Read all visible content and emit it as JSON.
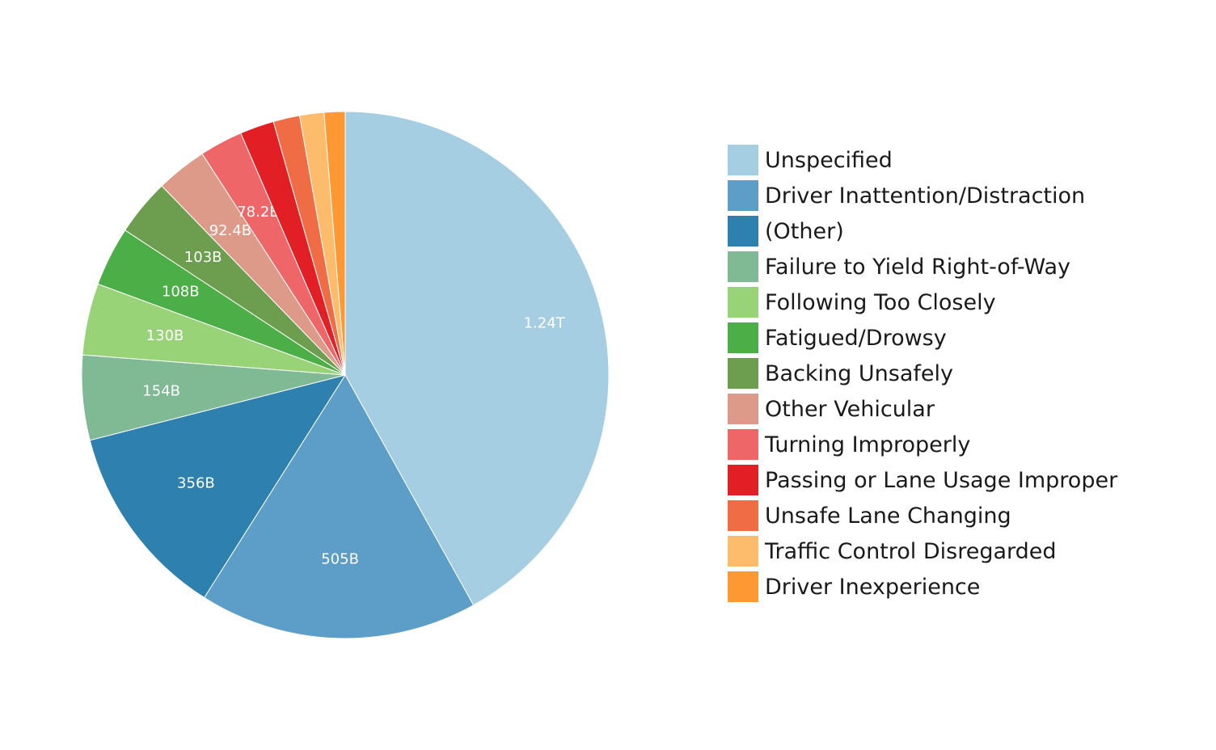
{
  "chart_data": {
    "type": "pie",
    "title": "",
    "legend_position": "right",
    "slices": [
      {
        "label": "Unspecified",
        "value": 1240000000000,
        "display": "1.24T",
        "color": "#a6cee3"
      },
      {
        "label": "Driver Inattention/Distraction",
        "value": 505000000000,
        "display": "505B",
        "color": "#5c9ec8"
      },
      {
        "label": "(Other)",
        "value": 356000000000,
        "display": "356B",
        "color": "#2e80ae"
      },
      {
        "label": "Failure to Yield Right-of-Way",
        "value": 154000000000,
        "display": "154B",
        "color": "#7fba95"
      },
      {
        "label": "Following Too Closely",
        "value": 130000000000,
        "display": "130B",
        "color": "#99d377"
      },
      {
        "label": "Fatigued/Drowsy",
        "value": 108000000000,
        "display": "108B",
        "color": "#4bae47"
      },
      {
        "label": "Backing Unsafely",
        "value": 103000000000,
        "display": "103B",
        "color": "#6d9e4f"
      },
      {
        "label": "Other Vehicular",
        "value": 92400000000,
        "display": "92.4B",
        "color": "#de9a88"
      },
      {
        "label": "Turning Improperly",
        "value": 78200000000,
        "display": "78.2B",
        "color": "#ef6669"
      },
      {
        "label": "Passing or Lane Usage Improper",
        "value": 62000000000,
        "display": "",
        "color": "#e31f26"
      },
      {
        "label": "Unsafe Lane Changing",
        "value": 48000000000,
        "display": "",
        "color": "#f06c45"
      },
      {
        "label": "Traffic Control Disregarded",
        "value": 44000000000,
        "display": "",
        "color": "#fdbc6c"
      },
      {
        "label": "Driver Inexperience",
        "value": 38000000000,
        "display": "",
        "color": "#fd9833"
      }
    ]
  }
}
